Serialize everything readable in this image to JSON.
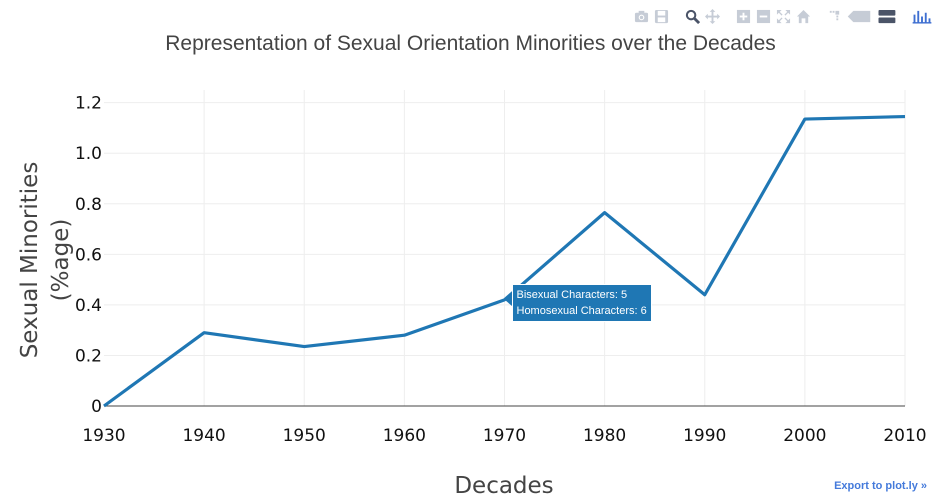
{
  "chart_data": {
    "type": "line",
    "title": "Representation of Sexual Orientation Minorities over the Decades",
    "xlabel": "Decades",
    "ylabel_lines": [
      "Sexual Minorities",
      "(%age)"
    ],
    "x": [
      1930,
      1940,
      1950,
      1960,
      1970,
      1980,
      1990,
      2000,
      2010
    ],
    "y": [
      0,
      0.29,
      0.235,
      0.28,
      0.42,
      0.765,
      0.44,
      1.135,
      1.145
    ],
    "xlim": [
      1930,
      2010
    ],
    "ylim": [
      0,
      1.25
    ],
    "xticks": [
      1930,
      1940,
      1950,
      1960,
      1970,
      1980,
      1990,
      2000,
      2010
    ],
    "yticks": [
      0,
      0.2,
      0.4,
      0.6,
      0.8,
      1.0,
      1.2
    ],
    "ytick_labels": [
      "0",
      "0.2",
      "0.4",
      "0.6",
      "0.8",
      "1.0",
      "1.2"
    ],
    "grid": true,
    "line_color": "#1f77b4"
  },
  "tooltip": {
    "x": 1970,
    "y": 0.42,
    "lines": [
      "Bisexual Characters: 5",
      "Homosexual Characters: 6"
    ]
  },
  "export_link": "Export to plot.ly »",
  "modebar": [
    "camera-icon",
    "save-icon",
    "zoom-icon",
    "pan-icon",
    "zoom-in-icon",
    "zoom-out-icon",
    "autoscale-icon",
    "home-icon",
    "spike-lines-icon",
    "hover-closest-icon",
    "hover-compare-icon",
    "plotly-logo-icon"
  ]
}
